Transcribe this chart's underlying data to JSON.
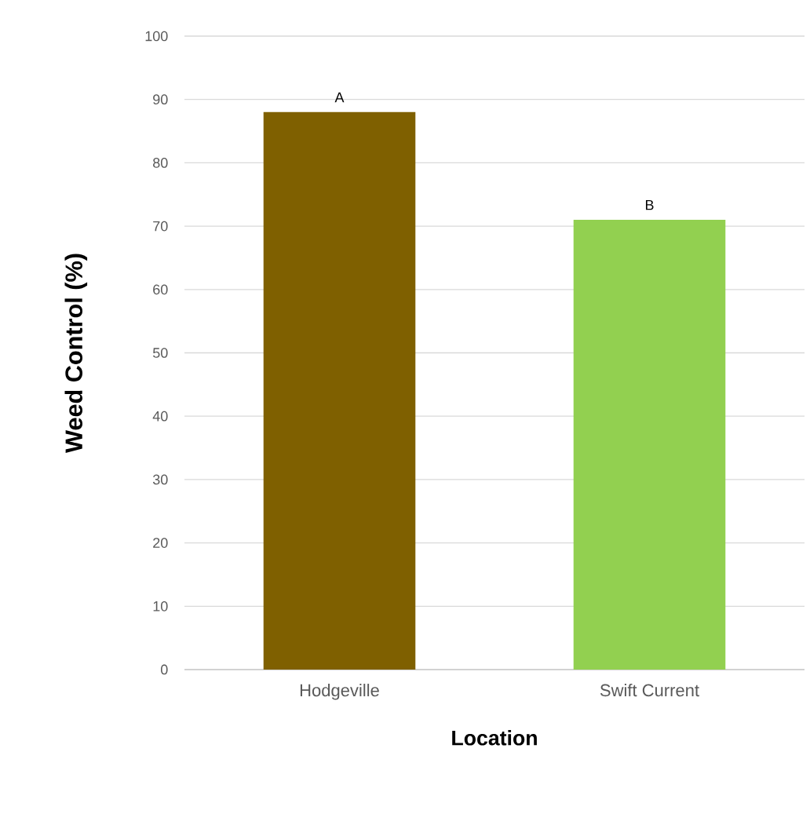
{
  "chart_data": {
    "type": "bar",
    "xlabel": "Location",
    "ylabel": "Weed Control (%)",
    "categories": [
      "Hodgeville",
      "Swift Current"
    ],
    "values": [
      88,
      71
    ],
    "colors": [
      "#7f6000",
      "#92d050"
    ],
    "ylim": [
      0,
      100
    ],
    "yticks": [
      0,
      10,
      20,
      30,
      40,
      50,
      60,
      70,
      80,
      90,
      100
    ],
    "grid": "y",
    "annotations": [
      {
        "text": "A",
        "x": "Hodgeville",
        "y": 88
      },
      {
        "text": "B",
        "x": "Swift Current",
        "y": 71
      }
    ]
  }
}
